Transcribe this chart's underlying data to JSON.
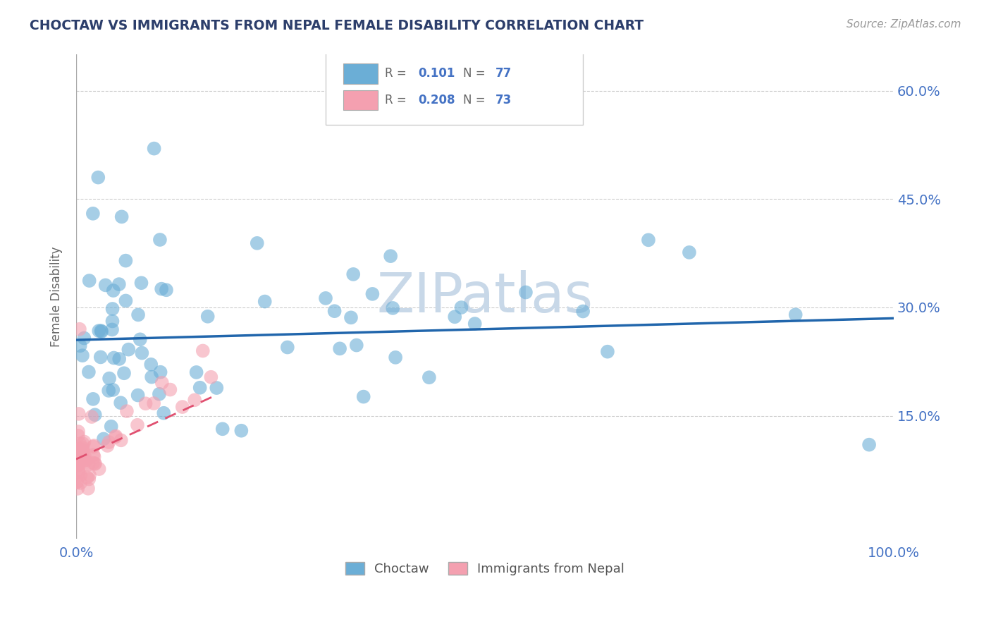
{
  "title": "CHOCTAW VS IMMIGRANTS FROM NEPAL FEMALE DISABILITY CORRELATION CHART",
  "source": "Source: ZipAtlas.com",
  "ylabel": "Female Disability",
  "legend_label1": "Choctaw",
  "legend_label2": "Immigrants from Nepal",
  "blue_color": "#6baed6",
  "pink_color": "#f4a0b0",
  "blue_line_color": "#2166ac",
  "pink_line_color": "#e05070",
  "watermark": "ZIPatlas",
  "watermark_color": "#c8d8e8",
  "title_color": "#2c3e6b",
  "axis_color": "#4472c4",
  "grid_color": "#c0c0c0",
  "background_color": "#ffffff",
  "xlim": [
    0.0,
    1.0
  ],
  "ylim": [
    -0.02,
    0.65
  ],
  "yticks": [
    0.15,
    0.3,
    0.45,
    0.6
  ],
  "ytick_labels": [
    "15.0%",
    "30.0%",
    "45.0%",
    "60.0%"
  ],
  "blue_R": "0.101",
  "blue_N": "77",
  "pink_R": "0.208",
  "pink_N": "73",
  "blue_line_y0": 0.255,
  "blue_line_y1": 0.285,
  "pink_line_x0": 0.0,
  "pink_line_y0": 0.09,
  "pink_line_x1": 0.17,
  "pink_line_y1": 0.178
}
